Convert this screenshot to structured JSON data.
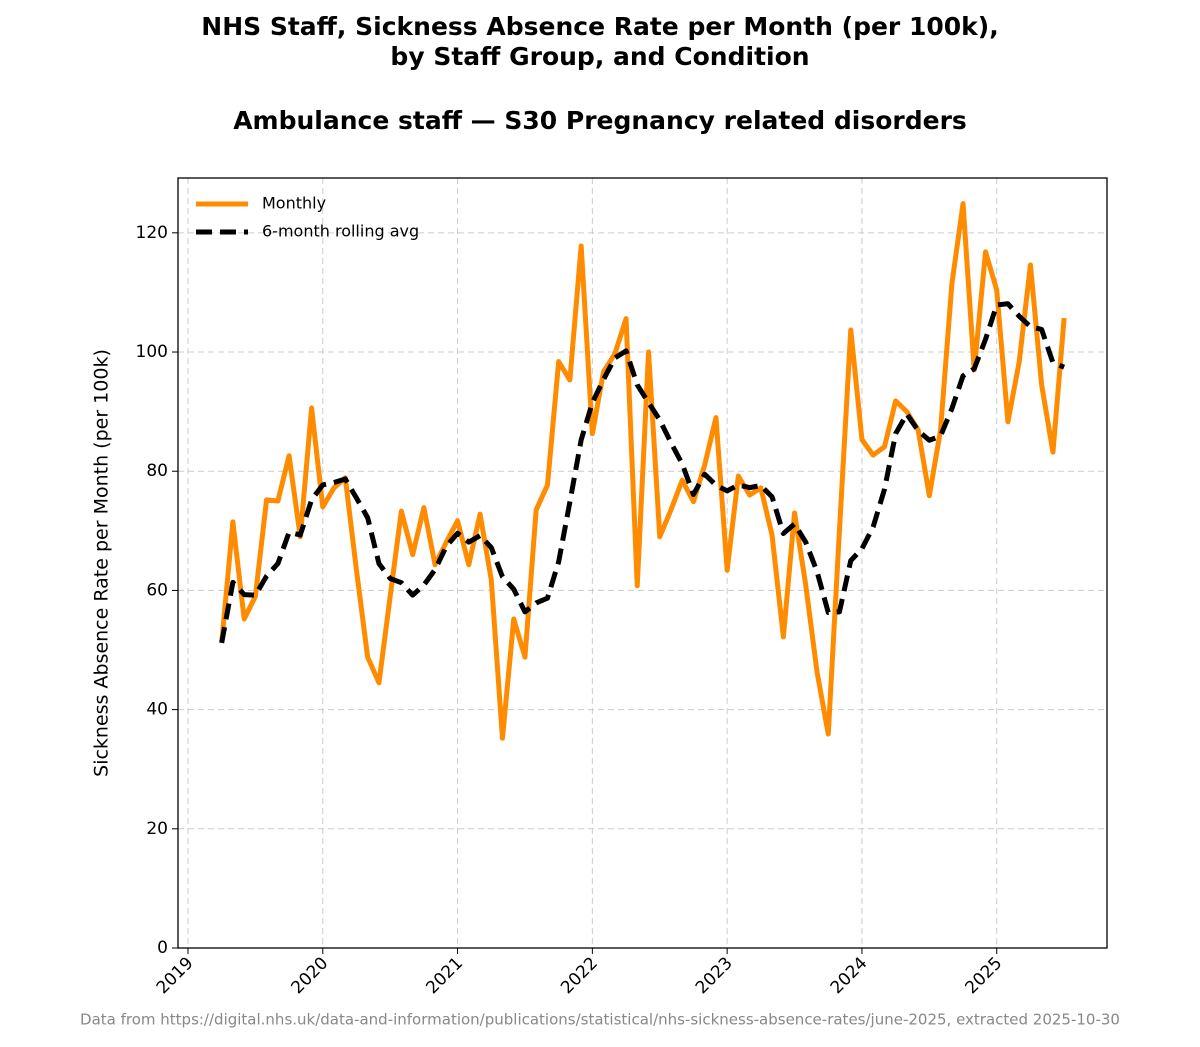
{
  "chart_data": {
    "type": "line",
    "title": [
      "NHS Staff, Sickness Absence Rate per Month (per 100k),",
      "by Staff Group, and Condition"
    ],
    "subtitle": "Ambulance staff — S30 Pregnancy related disorders",
    "ylabel": "Sickness Absence Rate per Month (per 100k)",
    "footnote": "Data from https://digital.nhs.uk/data-and-information/publications/statistical/nhs-sickness-absence-rates/june-2025, extracted 2025-10-30",
    "x": [
      2019.25,
      2019.333,
      2019.417,
      2019.5,
      2019.583,
      2019.667,
      2019.75,
      2019.833,
      2019.917,
      2020.0,
      2020.083,
      2020.167,
      2020.25,
      2020.333,
      2020.417,
      2020.5,
      2020.583,
      2020.667,
      2020.75,
      2020.833,
      2020.917,
      2021.0,
      2021.083,
      2021.167,
      2021.25,
      2021.333,
      2021.417,
      2021.5,
      2021.583,
      2021.667,
      2021.75,
      2021.833,
      2021.917,
      2022.0,
      2022.083,
      2022.167,
      2022.25,
      2022.333,
      2022.417,
      2022.5,
      2022.583,
      2022.667,
      2022.75,
      2022.833,
      2022.917,
      2023.0,
      2023.083,
      2023.167,
      2023.25,
      2023.333,
      2023.417,
      2023.5,
      2023.583,
      2023.667,
      2023.75,
      2023.833,
      2023.917,
      2024.0,
      2024.083,
      2024.167,
      2024.25,
      2024.333,
      2024.417,
      2024.5,
      2024.583,
      2024.667,
      2024.75,
      2024.833,
      2024.917,
      2025.0,
      2025.083,
      2025.167,
      2025.25,
      2025.333,
      2025.417,
      2025.5
    ],
    "series": [
      {
        "name": "Monthly",
        "color": "#ff8c00",
        "dashed": false,
        "values": [
          51.2,
          71.5,
          55.2,
          59,
          75.2,
          75,
          82.6,
          69,
          90.6,
          74,
          77.2,
          78.9,
          63.4,
          48.8,
          44.5,
          59,
          73.3,
          66,
          73.9,
          64.3,
          68.1,
          71.7,
          64.3,
          72.8,
          61.8,
          35.2,
          55.2,
          48.8,
          73.5,
          77.7,
          98.4,
          95.3,
          117.8,
          86.3,
          96.7,
          99.7,
          105.6,
          60.8,
          100,
          69,
          73.5,
          78.5,
          74.9,
          81,
          89,
          63.4,
          79.2,
          76,
          77.2,
          69.3,
          52.2,
          73,
          60.9,
          46.3,
          35.9,
          70,
          103.7,
          85.3,
          82.7,
          84.1,
          91.8,
          90,
          86.9,
          75.9,
          86.9,
          111.4,
          124.9,
          97,
          116.8,
          110.4,
          88.3,
          98.4,
          114.6,
          94.5,
          83.2,
          105.7
        ]
      },
      {
        "name": "6-month rolling avg",
        "color": "#000000",
        "dashed": true,
        "values": [
          51.2,
          61.35,
          59.3,
          59.2,
          62.4,
          64.5,
          69.75,
          69.3,
          75.2,
          77.7,
          78.1,
          78.7,
          75.5,
          72.2,
          64.5,
          62,
          61.3,
          59.2,
          60.9,
          63.5,
          67.4,
          69.6,
          68.1,
          69.2,
          67.2,
          62.3,
          60.2,
          56.4,
          57.9,
          58.7,
          64.8,
          74.8,
          85.25,
          91.5,
          95.4,
          99,
          100.2,
          94.5,
          91.5,
          88.6,
          84.8,
          81.2,
          76.1,
          79.5,
          77.65,
          76.7,
          77.7,
          77.25,
          77.6,
          75.7,
          69.55,
          71.15,
          68.1,
          63.15,
          56.3,
          56.4,
          65,
          67,
          70.65,
          76.95,
          86.3,
          89.6,
          86.8,
          85.2,
          85.9,
          90.5,
          96,
          97.2,
          102.15,
          107.9,
          108.1,
          106,
          104.25,
          103.8,
          98.2,
          97.45
        ]
      }
    ],
    "xlim": [
      2018.926,
      2025.818
    ],
    "xticks": [
      2019,
      2020,
      2021,
      2022,
      2023,
      2024,
      2025
    ],
    "ylim": [
      0,
      129.2
    ],
    "yticks": [
      0,
      20,
      40,
      60,
      80,
      100,
      120
    ],
    "grid": true,
    "legend": "upper-left"
  }
}
